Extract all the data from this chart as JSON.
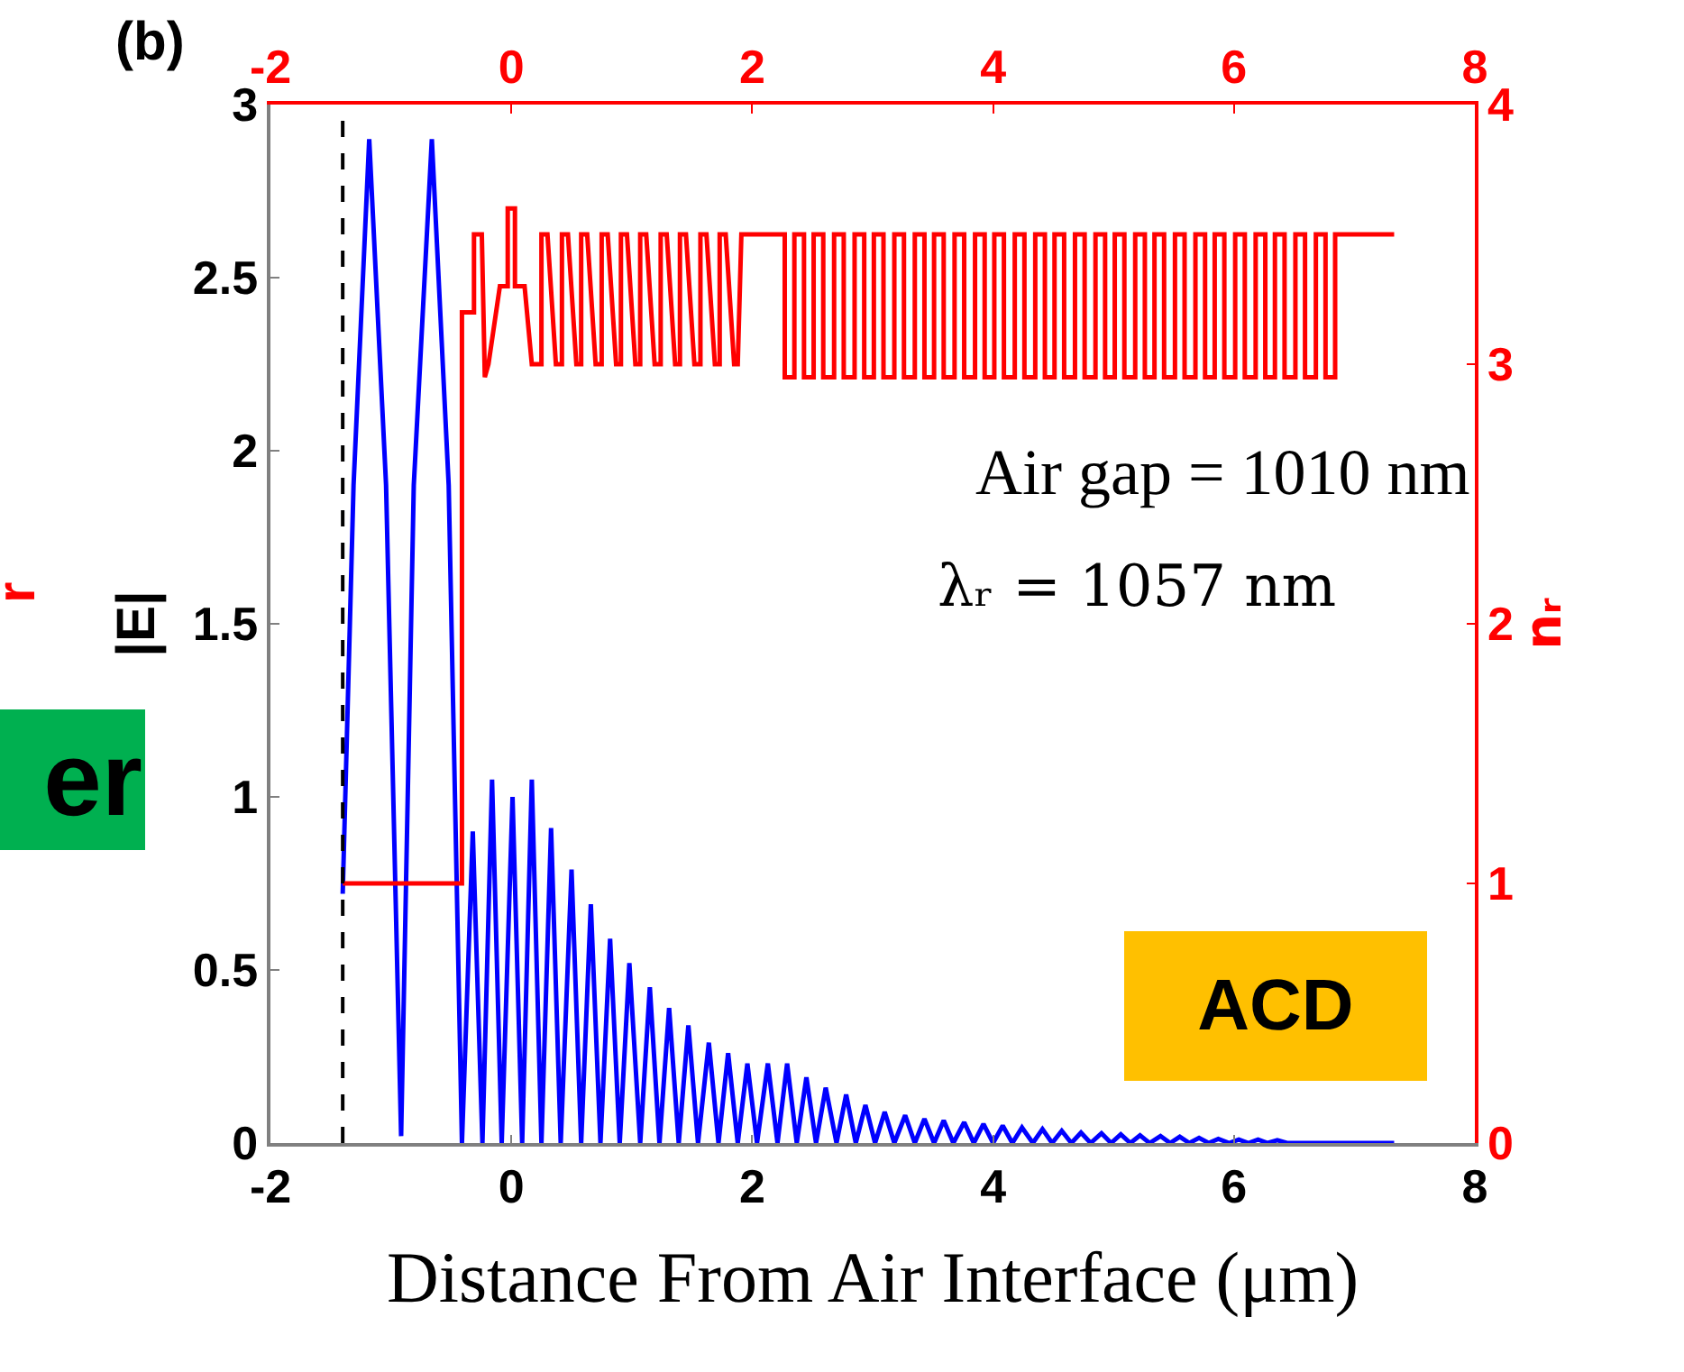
{
  "chart_data": {
    "type": "line",
    "xlabel": "Distance From Air Interface (μm)",
    "ylabel": "|E|",
    "y2label": "nᵣ",
    "xlim": [
      -2,
      8
    ],
    "xticks": [
      -2,
      0,
      2,
      4,
      6,
      8
    ],
    "x2lim": [
      -2,
      8
    ],
    "x2ticks": [
      -2,
      0,
      2,
      4,
      6,
      8
    ],
    "ylim": [
      0,
      3
    ],
    "yticks": [
      0,
      0.5,
      1,
      1.5,
      2,
      2.5,
      3
    ],
    "y2lim": [
      0,
      4
    ],
    "y2ticks": [
      0,
      1,
      2,
      3,
      4
    ],
    "marker": "none",
    "line_style": "solid",
    "ref_lines": [
      {
        "axis": "x",
        "value": -1.4,
        "color": "#000000",
        "line_style": "dashed"
      }
    ],
    "annotations": [
      "(b)",
      "er",
      "r",
      "Air gap = 1010 nm",
      "λᵣ = 1057 nm",
      "ACD"
    ],
    "series": [
      {
        "color": "#0000ff",
        "x": [
          -1.4,
          -1.31,
          -1.18,
          -1.04,
          -0.915,
          -0.81,
          -0.66,
          -0.52,
          -0.41,
          -0.32,
          -0.24,
          -0.16,
          -0.08,
          0.01,
          0.09,
          0.17,
          0.25,
          0.33,
          0.41,
          0.5,
          0.58,
          0.66,
          0.74,
          0.82,
          0.9,
          0.98,
          1.07,
          1.15,
          1.23,
          1.31,
          1.39,
          1.47,
          1.55,
          1.64,
          1.72,
          1.8,
          1.88,
          1.96,
          2.04,
          2.13,
          2.21,
          2.29,
          2.37,
          2.45,
          2.53,
          2.61,
          2.7,
          2.78,
          2.86,
          2.94,
          3.02,
          3.1,
          3.18,
          3.27,
          3.35,
          3.43,
          3.51,
          3.59,
          3.67,
          3.76,
          3.84,
          3.92,
          4.0,
          4.08,
          4.16,
          4.24,
          4.33,
          4.41,
          4.49,
          4.57,
          4.65,
          4.73,
          4.81,
          4.9,
          4.98,
          5.06,
          5.14,
          5.22,
          5.3,
          5.39,
          5.47,
          5.55,
          5.63,
          5.71,
          5.79,
          5.87,
          5.96,
          6.04,
          6.12,
          6.2,
          6.28,
          6.36,
          6.44,
          7.33
        ],
        "values": [
          0.72,
          1.9,
          2.9,
          1.9,
          0.02,
          1.9,
          2.9,
          1.9,
          0,
          0.9,
          0,
          1.05,
          0,
          1.0,
          0,
          1.05,
          0,
          0.91,
          0,
          0.79,
          0,
          0.69,
          0,
          0.59,
          0,
          0.52,
          0,
          0.45,
          0,
          0.39,
          0,
          0.34,
          0,
          0.29,
          0,
          0.26,
          0,
          0.23,
          0,
          0.23,
          0,
          0.23,
          0,
          0.19,
          0,
          0.16,
          0,
          0.14,
          0,
          0.11,
          0,
          0.09,
          0,
          0.08,
          0,
          0.07,
          0,
          0.065,
          0,
          0.06,
          0,
          0.055,
          0,
          0.05,
          0,
          0.045,
          0,
          0.04,
          0,
          0.035,
          0,
          0.03,
          0,
          0.028,
          0,
          0.025,
          0,
          0.022,
          0,
          0.02,
          0,
          0.018,
          0,
          0.015,
          0,
          0.012,
          0,
          0.01,
          0,
          0.01,
          0,
          0.008,
          0,
          0
        ]
      },
      {
        "color": "#ff0000",
        "axis": "y2",
        "x": [
          -1.4,
          -0.41,
          -0.41,
          -0.31,
          -0.31,
          -0.245,
          -0.22,
          -0.19,
          -0.095,
          -0.03,
          -0.03,
          0.03,
          0.03,
          0.11,
          0.17,
          0.25,
          0.25,
          0.3,
          0.37,
          0.42,
          0.42,
          0.47,
          0.54,
          0.58,
          0.58,
          0.63,
          0.7,
          0.75,
          0.75,
          0.8,
          0.87,
          0.91,
          0.91,
          0.96,
          1.03,
          1.07,
          1.07,
          1.12,
          1.19,
          1.24,
          1.24,
          1.29,
          1.36,
          1.4,
          1.4,
          1.45,
          1.52,
          1.57,
          1.57,
          1.62,
          1.69,
          1.73,
          1.73,
          1.78,
          1.85,
          1.88,
          1.91,
          2.27,
          2.27,
          2.35,
          2.35,
          2.43,
          2.43,
          2.51,
          2.51,
          2.59,
          2.59,
          2.68,
          2.68,
          2.76,
          2.76,
          2.85,
          2.85,
          2.93,
          2.93,
          3.01,
          3.01,
          3.09,
          3.09,
          3.18,
          3.18,
          3.26,
          3.26,
          3.35,
          3.35,
          3.43,
          3.43,
          3.51,
          3.51,
          3.59,
          3.59,
          3.68,
          3.68,
          3.76,
          3.76,
          3.85,
          3.85,
          3.93,
          3.93,
          4.01,
          4.01,
          4.09,
          4.09,
          4.18,
          4.18,
          4.26,
          4.26,
          4.35,
          4.35,
          4.43,
          4.43,
          4.51,
          4.51,
          4.59,
          4.59,
          4.68,
          4.68,
          4.76,
          4.76,
          4.85,
          4.85,
          4.93,
          4.93,
          5.01,
          5.01,
          5.09,
          5.09,
          5.18,
          5.18,
          5.26,
          5.26,
          5.34,
          5.34,
          5.42,
          5.42,
          5.51,
          5.51,
          5.59,
          5.59,
          5.68,
          5.68,
          5.76,
          5.76,
          5.84,
          5.84,
          5.92,
          5.92,
          6.01,
          6.01,
          6.09,
          6.09,
          6.18,
          6.18,
          6.26,
          6.26,
          6.34,
          6.34,
          6.42,
          6.42,
          6.51,
          6.51,
          6.59,
          6.59,
          6.68,
          6.68,
          6.76,
          6.76,
          6.84,
          6.84,
          7.33
        ],
        "values": [
          1,
          1,
          3.2,
          3.2,
          3.5,
          3.5,
          2.95,
          3.0,
          3.3,
          3.3,
          3.6,
          3.6,
          3.3,
          3.3,
          3.0,
          3.0,
          3.5,
          3.5,
          3.0,
          3.0,
          3.5,
          3.5,
          3.0,
          3.0,
          3.5,
          3.5,
          3.0,
          3.0,
          3.5,
          3.5,
          3.0,
          3.0,
          3.5,
          3.5,
          3.0,
          3.0,
          3.5,
          3.5,
          3.0,
          3.0,
          3.5,
          3.5,
          3.0,
          3.0,
          3.5,
          3.5,
          3.0,
          3.0,
          3.5,
          3.5,
          3.0,
          3.0,
          3.5,
          3.5,
          3.0,
          3.0,
          3.5,
          3.5,
          2.95,
          2.95,
          3.5,
          3.5,
          2.95,
          2.95,
          3.5,
          3.5,
          2.95,
          2.95,
          3.5,
          3.5,
          2.95,
          2.95,
          3.5,
          3.5,
          2.95,
          2.95,
          3.5,
          3.5,
          2.95,
          2.95,
          3.5,
          3.5,
          2.95,
          2.95,
          3.5,
          3.5,
          2.95,
          2.95,
          3.5,
          3.5,
          2.95,
          2.95,
          3.5,
          3.5,
          2.95,
          2.95,
          3.5,
          3.5,
          2.95,
          2.95,
          3.5,
          3.5,
          2.95,
          2.95,
          3.5,
          3.5,
          2.95,
          2.95,
          3.5,
          3.5,
          2.95,
          2.95,
          3.5,
          3.5,
          2.95,
          2.95,
          3.5,
          3.5,
          2.95,
          2.95,
          3.5,
          3.5,
          2.95,
          2.95,
          3.5,
          3.5,
          2.95,
          2.95,
          3.5,
          3.5,
          2.95,
          2.95,
          3.5,
          3.5,
          2.95,
          2.95,
          3.5,
          3.5,
          2.95,
          2.95,
          3.5,
          3.5,
          2.95,
          2.95,
          3.5,
          3.5,
          2.95,
          2.95,
          3.5,
          3.5,
          2.95,
          2.95,
          3.5,
          3.5,
          2.95,
          2.95,
          3.5,
          3.5,
          2.95,
          2.95,
          3.5,
          3.5,
          2.95,
          2.95,
          3.5,
          3.5,
          2.95,
          2.95,
          3.5,
          3.5
        ]
      }
    ]
  }
}
